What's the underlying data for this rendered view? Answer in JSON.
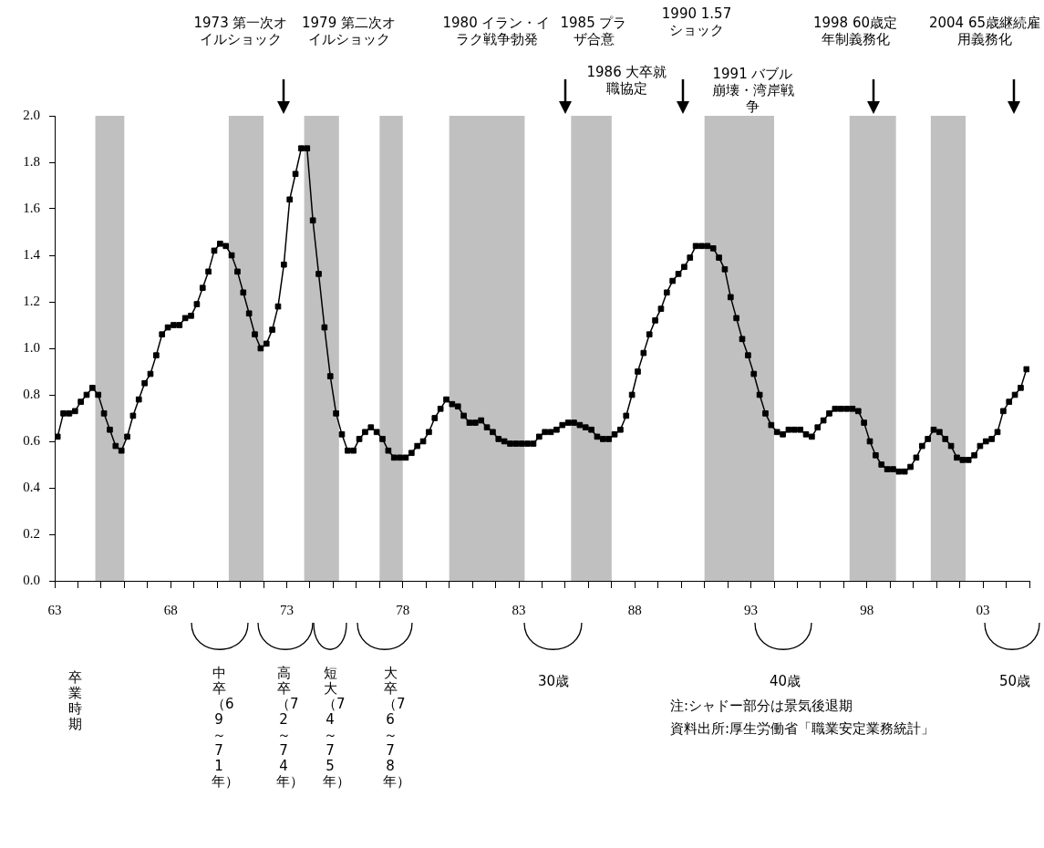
{
  "chart_data": {
    "type": "line",
    "xlim": [
      1963,
      2005
    ],
    "xticks": [
      {
        "value": 1963,
        "label": "63"
      },
      {
        "value": 1964,
        "label": null
      },
      {
        "value": 1965,
        "label": null
      },
      {
        "value": 1966,
        "label": null
      },
      {
        "value": 1967,
        "label": null
      },
      {
        "value": 1968,
        "label": "68"
      },
      {
        "value": 1969,
        "label": null
      },
      {
        "value": 1970,
        "label": null
      },
      {
        "value": 1971,
        "label": null
      },
      {
        "value": 1972,
        "label": null
      },
      {
        "value": 1973,
        "label": "73"
      },
      {
        "value": 1974,
        "label": null
      },
      {
        "value": 1975,
        "label": null
      },
      {
        "value": 1976,
        "label": null
      },
      {
        "value": 1977,
        "label": null
      },
      {
        "value": 1978,
        "label": "78"
      },
      {
        "value": 1979,
        "label": null
      },
      {
        "value": 1980,
        "label": null
      },
      {
        "value": 1981,
        "label": null
      },
      {
        "value": 1982,
        "label": null
      },
      {
        "value": 1983,
        "label": "83"
      },
      {
        "value": 1984,
        "label": null
      },
      {
        "value": 1985,
        "label": null
      },
      {
        "value": 1986,
        "label": null
      },
      {
        "value": 1987,
        "label": null
      },
      {
        "value": 1988,
        "label": "88"
      },
      {
        "value": 1989,
        "label": null
      },
      {
        "value": 1990,
        "label": null
      },
      {
        "value": 1991,
        "label": null
      },
      {
        "value": 1992,
        "label": null
      },
      {
        "value": 1993,
        "label": "93"
      },
      {
        "value": 1994,
        "label": null
      },
      {
        "value": 1995,
        "label": null
      },
      {
        "value": 1996,
        "label": null
      },
      {
        "value": 1997,
        "label": null
      },
      {
        "value": 1998,
        "label": "98"
      },
      {
        "value": 1999,
        "label": null
      },
      {
        "value": 2000,
        "label": null
      },
      {
        "value": 2001,
        "label": null
      },
      {
        "value": 2002,
        "label": null
      },
      {
        "value": 2003,
        "label": "03"
      },
      {
        "value": 2004,
        "label": null
      },
      {
        "value": 2005,
        "label": null
      }
    ],
    "ylim": [
      0,
      2
    ],
    "yticks": [
      {
        "value": 0,
        "label": "0.0"
      },
      {
        "value": 0.2,
        "label": "0.2"
      },
      {
        "value": 0.4,
        "label": "0.4"
      },
      {
        "value": 0.6,
        "label": "0.6"
      },
      {
        "value": 0.8,
        "label": "0.8"
      },
      {
        "value": 1,
        "label": "1.0"
      },
      {
        "value": 1.2,
        "label": "1.2"
      },
      {
        "value": 1.4,
        "label": "1.4"
      },
      {
        "value": 1.6,
        "label": "1.6"
      },
      {
        "value": 1.8,
        "label": "1.8"
      },
      {
        "value": 2,
        "label": "2.0"
      }
    ],
    "marker": "square",
    "line_style": "solid",
    "series": [
      {
        "color": "#000000",
        "x": [
          1963.125,
          1963.375,
          1963.625,
          1963.875,
          1964.125,
          1964.375,
          1964.625,
          1964.875,
          1965.125,
          1965.375,
          1965.625,
          1965.875,
          1966.125,
          1966.375,
          1966.625,
          1966.875,
          1967.125,
          1967.375,
          1967.625,
          1967.875,
          1968.125,
          1968.375,
          1968.625,
          1968.875,
          1969.125,
          1969.375,
          1969.625,
          1969.875,
          1970.125,
          1970.375,
          1970.625,
          1970.875,
          1971.125,
          1971.375,
          1971.625,
          1971.875,
          1972.125,
          1972.375,
          1972.625,
          1972.875,
          1973.125,
          1973.375,
          1973.625,
          1973.875,
          1974.125,
          1974.375,
          1974.625,
          1974.875,
          1975.125,
          1975.375,
          1975.625,
          1975.875,
          1976.125,
          1976.375,
          1976.625,
          1976.875,
          1977.125,
          1977.375,
          1977.625,
          1977.875,
          1978.125,
          1978.375,
          1978.625,
          1978.875,
          1979.125,
          1979.375,
          1979.625,
          1979.875,
          1980.125,
          1980.375,
          1980.625,
          1980.875,
          1981.125,
          1981.375,
          1981.625,
          1981.875,
          1982.125,
          1982.375,
          1982.625,
          1982.875,
          1983.125,
          1983.375,
          1983.625,
          1983.875,
          1984.125,
          1984.375,
          1984.625,
          1984.875,
          1985.125,
          1985.375,
          1985.625,
          1985.875,
          1986.125,
          1986.375,
          1986.625,
          1986.875,
          1987.125,
          1987.375,
          1987.625,
          1987.875,
          1988.125,
          1988.375,
          1988.625,
          1988.875,
          1989.125,
          1989.375,
          1989.625,
          1989.875,
          1990.125,
          1990.375,
          1990.625,
          1990.875,
          1991.125,
          1991.375,
          1991.625,
          1991.875,
          1992.125,
          1992.375,
          1992.625,
          1992.875,
          1993.125,
          1993.375,
          1993.625,
          1993.875,
          1994.125,
          1994.375,
          1994.625,
          1994.875,
          1995.125,
          1995.375,
          1995.625,
          1995.875,
          1996.125,
          1996.375,
          1996.625,
          1996.875,
          1997.125,
          1997.375,
          1997.625,
          1997.875,
          1998.125,
          1998.375,
          1998.625,
          1998.875,
          1999.125,
          1999.375,
          1999.625,
          1999.875,
          2000.125,
          2000.375,
          2000.625,
          2000.875,
          2001.125,
          2001.375,
          2001.625,
          2001.875,
          2002.125,
          2002.375,
          2002.625,
          2002.875,
          2003.125,
          2003.375,
          2003.625,
          2003.875,
          2004.125,
          2004.375,
          2004.625,
          2004.875
        ],
        "values": [
          0.62,
          0.72,
          0.72,
          0.73,
          0.77,
          0.8,
          0.83,
          0.8,
          0.72,
          0.65,
          0.58,
          0.56,
          0.62,
          0.71,
          0.78,
          0.85,
          0.89,
          0.97,
          1.06,
          1.09,
          1.1,
          1.1,
          1.13,
          1.14,
          1.19,
          1.26,
          1.33,
          1.42,
          1.45,
          1.44,
          1.4,
          1.33,
          1.24,
          1.15,
          1.06,
          1.0,
          1.02,
          1.08,
          1.18,
          1.36,
          1.64,
          1.75,
          1.86,
          1.86,
          1.55,
          1.32,
          1.09,
          0.88,
          0.72,
          0.63,
          0.56,
          0.56,
          0.61,
          0.64,
          0.66,
          0.64,
          0.61,
          0.56,
          0.53,
          0.53,
          0.53,
          0.55,
          0.58,
          0.6,
          0.64,
          0.7,
          0.74,
          0.78,
          0.76,
          0.75,
          0.71,
          0.68,
          0.68,
          0.69,
          0.66,
          0.64,
          0.61,
          0.6,
          0.59,
          0.59,
          0.59,
          0.59,
          0.59,
          0.62,
          0.64,
          0.64,
          0.65,
          0.67,
          0.68,
          0.68,
          0.67,
          0.66,
          0.65,
          0.62,
          0.61,
          0.61,
          0.63,
          0.65,
          0.71,
          0.8,
          0.9,
          0.98,
          1.06,
          1.12,
          1.17,
          1.24,
          1.29,
          1.32,
          1.35,
          1.39,
          1.44,
          1.44,
          1.44,
          1.43,
          1.39,
          1.34,
          1.22,
          1.13,
          1.04,
          0.97,
          0.89,
          0.8,
          0.72,
          0.67,
          0.64,
          0.63,
          0.65,
          0.65,
          0.65,
          0.63,
          0.62,
          0.66,
          0.69,
          0.72,
          0.74,
          0.74,
          0.74,
          0.74,
          0.73,
          0.68,
          0.6,
          0.54,
          0.5,
          0.48,
          0.48,
          0.47,
          0.47,
          0.49,
          0.53,
          0.58,
          0.61,
          0.65,
          0.64,
          0.61,
          0.58,
          0.53,
          0.52,
          0.52,
          0.54,
          0.58,
          0.6,
          0.61,
          0.64,
          0.73,
          0.77,
          0.8,
          0.83,
          0.91
        ]
      }
    ],
    "bands": [
      {
        "axis": "x",
        "from": 1964.75,
        "to": 1966.0,
        "color": "#c0c0c0"
      },
      {
        "axis": "x",
        "from": 1970.5,
        "to": 1972.0,
        "color": "#c0c0c0"
      },
      {
        "axis": "x",
        "from": 1973.75,
        "to": 1975.25,
        "color": "#c0c0c0"
      },
      {
        "axis": "x",
        "from": 1977.0,
        "to": 1978.0,
        "color": "#c0c0c0"
      },
      {
        "axis": "x",
        "from": 1980.0,
        "to": 1983.25,
        "color": "#c0c0c0"
      },
      {
        "axis": "x",
        "from": 1985.25,
        "to": 1987.0,
        "color": "#c0c0c0"
      },
      {
        "axis": "x",
        "from": 1991.0,
        "to": 1994.0,
        "color": "#c0c0c0"
      },
      {
        "axis": "x",
        "from": 1997.25,
        "to": 1999.25,
        "color": "#c0c0c0"
      },
      {
        "axis": "x",
        "from": 2000.75,
        "to": 2002.25,
        "color": "#c0c0c0"
      }
    ],
    "annotations": [
      "1973 第一次オイルショック",
      "1979 第二次オイルショック",
      "1980 イラン・イラク戦争勃発",
      "1985 プラザ合意",
      "1986 大卒就職協定",
      "1990 1.57ショック",
      "1991 バブル崩壊・湾岸戦争",
      "1998 60歳定年制義務化",
      "2004 65歳継続雇用義務化",
      "卒業時期",
      "中卒（69～71年）",
      "高卒（72～74年）",
      "短大（74～75年）",
      "大卒（76～78年）",
      "30歳",
      "40歳",
      "50歳",
      "注:シャドー部分は景気後退期",
      "資料出所:厚生労働省「職業安定業務統計」"
    ]
  }
}
